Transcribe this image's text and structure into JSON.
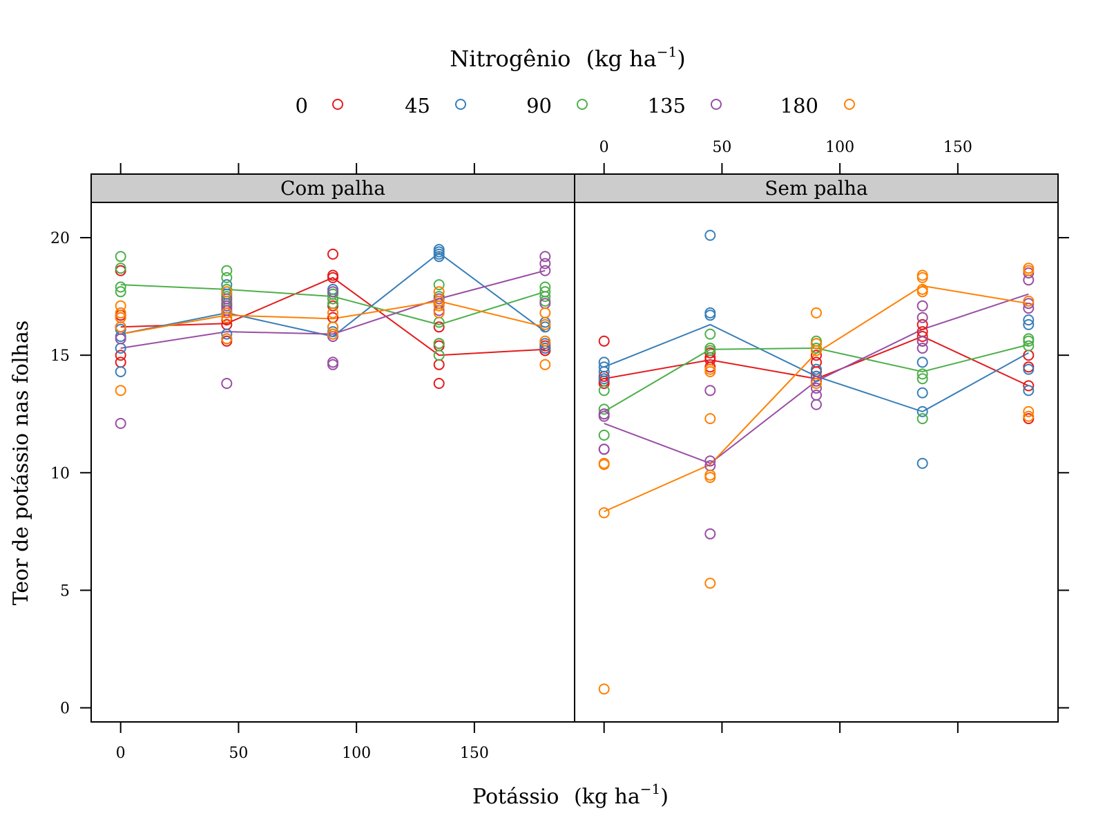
{
  "chart_data": {
    "type": "scatter",
    "legend": {
      "title": "Nitrogênio",
      "title_unit": "(kg  ha",
      "title_unit_exp": "−1",
      "title_unit_close": ")",
      "placement": "top",
      "entries": [
        {
          "label": "0",
          "color": "#e41a1c"
        },
        {
          "label": "45",
          "color": "#377eb8"
        },
        {
          "label": "90",
          "color": "#4daf4a"
        },
        {
          "label": "135",
          "color": "#984ea3"
        },
        {
          "label": "180",
          "color": "#ff7f00"
        }
      ]
    },
    "xlabel": "Potássio",
    "xlabel_unit": "(kg  ha",
    "xlabel_unit_exp": "−1",
    "xlabel_unit_close": ")",
    "ylabel": "Teor de potássio nas folhas",
    "x_ticks": [
      0,
      50,
      100,
      150
    ],
    "y_ticks": [
      0,
      5,
      10,
      15,
      20
    ],
    "xlim": [
      -12.5,
      192.5
    ],
    "ylim": [
      -0.6,
      21.5
    ],
    "grid": false,
    "panels": [
      {
        "name": "Com palha",
        "lines": [
          {
            "nitrogen": "0",
            "points": [
              [
                0,
                16.2
              ],
              [
                45,
                16.35
              ],
              [
                90,
                18.3
              ],
              [
                135,
                15.0
              ],
              [
                180,
                15.25
              ]
            ]
          },
          {
            "nitrogen": "45",
            "points": [
              [
                0,
                15.9
              ],
              [
                45,
                16.8
              ],
              [
                90,
                15.8
              ],
              [
                135,
                19.35
              ],
              [
                180,
                16.0
              ]
            ]
          },
          {
            "nitrogen": "90",
            "points": [
              [
                0,
                18.0
              ],
              [
                45,
                17.8
              ],
              [
                90,
                17.5
              ],
              [
                135,
                16.3
              ],
              [
                180,
                17.7
              ]
            ]
          },
          {
            "nitrogen": "135",
            "points": [
              [
                0,
                15.3
              ],
              [
                45,
                16.0
              ],
              [
                90,
                15.9
              ],
              [
                135,
                17.4
              ],
              [
                180,
                18.6
              ]
            ]
          },
          {
            "nitrogen": "180",
            "points": [
              [
                0,
                15.9
              ],
              [
                45,
                16.7
              ],
              [
                90,
                16.55
              ],
              [
                135,
                17.3
              ],
              [
                180,
                16.2
              ]
            ]
          }
        ],
        "points": [
          {
            "nitrogen": "0",
            "x": 0,
            "y": [
              18.6,
              16.7,
              15.0,
              14.7,
              16.2
            ]
          },
          {
            "nitrogen": "0",
            "x": 45,
            "y": [
              16.5,
              16.3,
              15.6,
              17.2,
              16.8
            ]
          },
          {
            "nitrogen": "0",
            "x": 90,
            "y": [
              19.3,
              18.4,
              18.3,
              17.4,
              17.1,
              16.6
            ]
          },
          {
            "nitrogen": "0",
            "x": 135,
            "y": [
              16.2,
              15.5,
              15.4,
              14.6,
              13.8
            ]
          },
          {
            "nitrogen": "0",
            "x": 180,
            "y": [
              15.3,
              15.2,
              15.4,
              15.2
            ]
          },
          {
            "nitrogen": "45",
            "x": 0,
            "y": [
              14.3,
              15.3,
              16.1,
              16.6,
              15.8
            ]
          },
          {
            "nitrogen": "45",
            "x": 45,
            "y": [
              18.0,
              17.6,
              17.0,
              15.9,
              15.7
            ]
          },
          {
            "nitrogen": "45",
            "x": 90,
            "y": [
              17.8,
              17.6,
              16.2,
              16.0,
              15.9
            ]
          },
          {
            "nitrogen": "45",
            "x": 135,
            "y": [
              19.5,
              19.4,
              19.3,
              19.2
            ]
          },
          {
            "nitrogen": "45",
            "x": 180,
            "y": [
              16.2,
              16.4,
              15.5,
              15.3
            ]
          },
          {
            "nitrogen": "90",
            "x": 0,
            "y": [
              19.2,
              18.7,
              17.9,
              17.7
            ]
          },
          {
            "nitrogen": "90",
            "x": 45,
            "y": [
              18.6,
              18.3,
              17.8,
              17.5,
              17.3,
              17.1
            ]
          },
          {
            "nitrogen": "90",
            "x": 90,
            "y": [
              17.6,
              17.4,
              17.2
            ]
          },
          {
            "nitrogen": "90",
            "x": 135,
            "y": [
              18.0,
              17.5,
              17.2,
              16.4,
              15.5,
              15.0
            ]
          },
          {
            "nitrogen": "90",
            "x": 180,
            "y": [
              17.9,
              17.7,
              17.5,
              17.3
            ]
          },
          {
            "nitrogen": "135",
            "x": 0,
            "y": [
              16.2,
              15.7,
              12.1
            ]
          },
          {
            "nitrogen": "135",
            "x": 45,
            "y": [
              17.4,
              17.1,
              16.9,
              13.8
            ]
          },
          {
            "nitrogen": "135",
            "x": 90,
            "y": [
              17.7,
              15.8,
              14.7,
              14.6
            ]
          },
          {
            "nitrogen": "135",
            "x": 135,
            "y": [
              17.4,
              17.2,
              16.9
            ]
          },
          {
            "nitrogen": "135",
            "x": 180,
            "y": [
              19.2,
              18.9,
              18.6,
              17.2
            ]
          },
          {
            "nitrogen": "180",
            "x": 0,
            "y": [
              17.1,
              16.8,
              16.6,
              16.2,
              13.5
            ]
          },
          {
            "nitrogen": "180",
            "x": 45,
            "y": [
              17.7,
              16.8,
              16.6,
              15.7
            ]
          },
          {
            "nitrogen": "180",
            "x": 90,
            "y": [
              16.8,
              16.2,
              15.9
            ]
          },
          {
            "nitrogen": "180",
            "x": 135,
            "y": [
              17.7,
              17.3,
              17.1,
              16.8
            ]
          },
          {
            "nitrogen": "180",
            "x": 180,
            "y": [
              16.8,
              16.3,
              15.6,
              14.6
            ]
          }
        ]
      },
      {
        "name": "Sem palha",
        "lines": [
          {
            "nitrogen": "0",
            "points": [
              [
                0,
                14.0
              ],
              [
                45,
                14.8
              ],
              [
                90,
                14.0
              ],
              [
                135,
                15.8
              ],
              [
                180,
                13.7
              ]
            ]
          },
          {
            "nitrogen": "45",
            "points": [
              [
                0,
                14.5
              ],
              [
                45,
                16.3
              ],
              [
                90,
                14.1
              ],
              [
                135,
                12.6
              ],
              [
                180,
                15.1
              ]
            ]
          },
          {
            "nitrogen": "90",
            "points": [
              [
                0,
                12.6
              ],
              [
                45,
                15.25
              ],
              [
                90,
                15.3
              ],
              [
                135,
                14.3
              ],
              [
                180,
                15.45
              ]
            ]
          },
          {
            "nitrogen": "135",
            "points": [
              [
                0,
                12.1
              ],
              [
                45,
                10.4
              ],
              [
                90,
                13.9
              ],
              [
                135,
                16.1
              ],
              [
                180,
                17.6
              ]
            ]
          },
          {
            "nitrogen": "180",
            "points": [
              [
                0,
                8.35
              ],
              [
                45,
                10.35
              ],
              [
                90,
                15.1
              ],
              [
                135,
                17.95
              ],
              [
                180,
                17.2
              ]
            ]
          }
        ],
        "points": [
          {
            "nitrogen": "0",
            "x": 0,
            "y": [
              15.6,
              14.1,
              13.9,
              13.8
            ]
          },
          {
            "nitrogen": "0",
            "x": 45,
            "y": [
              15.1,
              14.9,
              14.8,
              14.5
            ]
          },
          {
            "nitrogen": "0",
            "x": 90,
            "y": [
              15.0,
              14.7,
              14.3,
              14.1
            ]
          },
          {
            "nitrogen": "0",
            "x": 135,
            "y": [
              16.3,
              16.0,
              15.8,
              15.6
            ]
          },
          {
            "nitrogen": "0",
            "x": 180,
            "y": [
              15.0,
              14.5,
              13.7,
              12.3
            ]
          },
          {
            "nitrogen": "45",
            "x": 0,
            "y": [
              14.7,
              14.5,
              14.3,
              14.0
            ]
          },
          {
            "nitrogen": "45",
            "x": 45,
            "y": [
              20.1,
              16.8,
              16.7
            ]
          },
          {
            "nitrogen": "45",
            "x": 90,
            "y": [
              14.4,
              14.1,
              13.9
            ]
          },
          {
            "nitrogen": "45",
            "x": 135,
            "y": [
              14.7,
              13.4,
              12.6,
              10.4
            ]
          },
          {
            "nitrogen": "45",
            "x": 180,
            "y": [
              16.5,
              16.3,
              14.4,
              13.5
            ]
          },
          {
            "nitrogen": "90",
            "x": 0,
            "y": [
              13.5,
              12.7,
              12.5,
              11.6
            ]
          },
          {
            "nitrogen": "90",
            "x": 45,
            "y": [
              15.9,
              15.3,
              15.2
            ]
          },
          {
            "nitrogen": "90",
            "x": 90,
            "y": [
              15.6,
              15.5,
              15.3
            ]
          },
          {
            "nitrogen": "90",
            "x": 135,
            "y": [
              14.2,
              14.0,
              12.3
            ]
          },
          {
            "nitrogen": "90",
            "x": 180,
            "y": [
              15.7,
              15.6,
              15.4
            ]
          },
          {
            "nitrogen": "135",
            "x": 0,
            "y": [
              12.5,
              12.4,
              11.0,
              11.0
            ]
          },
          {
            "nitrogen": "135",
            "x": 45,
            "y": [
              13.5,
              10.5,
              10.3,
              7.4
            ]
          },
          {
            "nitrogen": "135",
            "x": 90,
            "y": [
              13.6,
              13.3,
              12.9,
              13.9
            ]
          },
          {
            "nitrogen": "135",
            "x": 135,
            "y": [
              17.1,
              16.6,
              15.6,
              15.3
            ]
          },
          {
            "nitrogen": "135",
            "x": 180,
            "y": [
              18.5,
              18.2,
              17.2,
              17.0
            ]
          },
          {
            "nitrogen": "180",
            "x": 0,
            "y": [
              10.4,
              10.35,
              8.3,
              0.8
            ]
          },
          {
            "nitrogen": "180",
            "x": 45,
            "y": [
              14.4,
              14.3,
              12.3,
              9.9,
              9.8,
              5.3
            ]
          },
          {
            "nitrogen": "180",
            "x": 90,
            "y": [
              16.8,
              15.5,
              15.2,
              13.8
            ]
          },
          {
            "nitrogen": "180",
            "x": 135,
            "y": [
              18.4,
              18.3,
              17.8,
              17.7
            ]
          },
          {
            "nitrogen": "180",
            "x": 180,
            "y": [
              18.7,
              18.6,
              17.3,
              12.6,
              12.4
            ]
          }
        ]
      }
    ]
  }
}
